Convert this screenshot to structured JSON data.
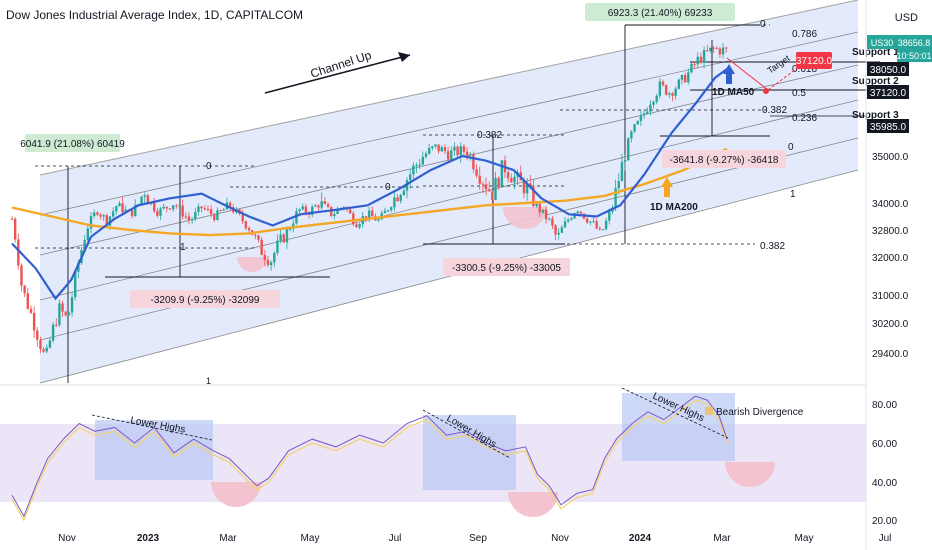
{
  "header": {
    "title": "Dow Jones Industrial Average Index, 1D, CAPITALCOM",
    "currency": "USD"
  },
  "colors": {
    "channel_fill": "#dde6fb",
    "ma50": "#2f5fd0",
    "ma200": "#f5a623",
    "price_up": "#26a69a",
    "price_down": "#ef5350",
    "rsi": "#7e57c2",
    "rsi_ma": "#f2d36b",
    "rsi_band": "#ece4f7",
    "box_blue": "#b9c8f3",
    "circle_pink": "#f3c3cf",
    "label_green": "#cdebd3",
    "label_pink": "#f6d5dd",
    "target_red": "#f23645",
    "dark": "#131722",
    "price_tag": "#26a69a"
  },
  "chart_data": {
    "type": "candlestick",
    "y_axis": {
      "ticks": [
        35000,
        34000,
        32800,
        32000,
        31000,
        30200,
        29400
      ],
      "tick_labels": [
        "35000.0",
        "34000.0",
        "32800.0",
        "32000.0",
        "31000.0",
        "30200.0",
        "29400.0"
      ],
      "ylim": [
        28900,
        39100
      ]
    },
    "x_axis": {
      "tick_labels": [
        "Nov",
        "2023",
        "Mar",
        "May",
        "Jul",
        "Sep",
        "Nov",
        "2024",
        "Mar",
        "May",
        "Jul"
      ]
    },
    "rsi_axis": {
      "tick_labels": [
        "80.00",
        "60.00",
        "40.00",
        "20.00"
      ],
      "ylim": [
        17,
        92
      ]
    },
    "price_path": [
      [
        0,
        33300
      ],
      [
        5,
        31200
      ],
      [
        10,
        30400
      ],
      [
        14,
        29700
      ],
      [
        17,
        29200
      ],
      [
        20,
        29900
      ],
      [
        24,
        30600
      ],
      [
        28,
        30300
      ],
      [
        33,
        31700
      ],
      [
        38,
        32900
      ],
      [
        43,
        33700
      ],
      [
        48,
        33200
      ],
      [
        53,
        33900
      ],
      [
        60,
        33500
      ],
      [
        67,
        34300
      ],
      [
        74,
        33600
      ],
      [
        82,
        34000
      ],
      [
        90,
        33200
      ],
      [
        96,
        33800
      ],
      [
        103,
        33400
      ],
      [
        110,
        33900
      ],
      [
        116,
        33300
      ],
      [
        121,
        32800
      ],
      [
        126,
        32200
      ],
      [
        131,
        31900
      ],
      [
        135,
        32400
      ],
      [
        140,
        32800
      ],
      [
        145,
        33700
      ],
      [
        150,
        33600
      ],
      [
        156,
        34000
      ],
      [
        162,
        33500
      ],
      [
        168,
        33900
      ],
      [
        174,
        33100
      ],
      [
        180,
        33500
      ],
      [
        186,
        33200
      ],
      [
        192,
        34000
      ],
      [
        198,
        34400
      ],
      [
        206,
        34900
      ],
      [
        214,
        35300
      ],
      [
        222,
        35100
      ],
      [
        230,
        35200
      ],
      [
        237,
        34600
      ],
      [
        243,
        34200
      ],
      [
        249,
        34800
      ],
      [
        255,
        34500
      ],
      [
        261,
        34300
      ],
      [
        267,
        33700
      ],
      [
        272,
        33200
      ],
      [
        276,
        32500
      ],
      [
        281,
        33200
      ],
      [
        286,
        33800
      ],
      [
        290,
        33400
      ],
      [
        295,
        33000
      ],
      [
        298,
        32600
      ],
      [
        302,
        33400
      ],
      [
        306,
        34300
      ],
      [
        310,
        35000
      ],
      [
        314,
        35800
      ],
      [
        318,
        36200
      ],
      [
        323,
        36900
      ],
      [
        328,
        37400
      ],
      [
        333,
        37200
      ],
      [
        338,
        37500
      ],
      [
        343,
        37900
      ],
      [
        347,
        38300
      ],
      [
        351,
        38500
      ],
      [
        355,
        38700
      ],
      [
        359,
        38650
      ],
      [
        362,
        38656
      ]
    ],
    "ma50_path": [
      [
        0,
        32400
      ],
      [
        12,
        31700
      ],
      [
        22,
        30900
      ],
      [
        30,
        31400
      ],
      [
        40,
        32600
      ],
      [
        52,
        33300
      ],
      [
        64,
        33900
      ],
      [
        80,
        34100
      ],
      [
        96,
        34200
      ],
      [
        108,
        33900
      ],
      [
        120,
        33400
      ],
      [
        132,
        33000
      ],
      [
        146,
        33500
      ],
      [
        164,
        33700
      ],
      [
        180,
        33900
      ],
      [
        196,
        34300
      ],
      [
        212,
        34700
      ],
      [
        228,
        35000
      ],
      [
        240,
        34900
      ],
      [
        254,
        34700
      ],
      [
        268,
        34100
      ],
      [
        282,
        33500
      ],
      [
        296,
        33400
      ],
      [
        308,
        33900
      ],
      [
        320,
        34600
      ],
      [
        334,
        35800
      ],
      [
        346,
        36800
      ],
      [
        356,
        37700
      ],
      [
        362,
        38000
      ]
    ],
    "ma200_path": [
      [
        0,
        33800
      ],
      [
        20,
        33400
      ],
      [
        40,
        33000
      ],
      [
        60,
        32800
      ],
      [
        80,
        32700
      ],
      [
        100,
        32650
      ],
      [
        120,
        32700
      ],
      [
        140,
        32900
      ],
      [
        160,
        33100
      ],
      [
        180,
        33300
      ],
      [
        200,
        33500
      ],
      [
        220,
        33700
      ],
      [
        240,
        33900
      ],
      [
        260,
        34000
      ],
      [
        280,
        34050
      ],
      [
        300,
        34150
      ],
      [
        320,
        34400
      ],
      [
        340,
        34700
      ],
      [
        362,
        35250
      ]
    ],
    "rsi_path": [
      [
        0,
        33
      ],
      [
        6,
        22
      ],
      [
        12,
        38
      ],
      [
        18,
        52
      ],
      [
        26,
        62
      ],
      [
        34,
        70
      ],
      [
        42,
        66
      ],
      [
        52,
        68
      ],
      [
        62,
        60
      ],
      [
        72,
        68
      ],
      [
        82,
        55
      ],
      [
        92,
        62
      ],
      [
        102,
        56
      ],
      [
        110,
        52
      ],
      [
        118,
        44
      ],
      [
        124,
        38
      ],
      [
        130,
        42
      ],
      [
        140,
        56
      ],
      [
        152,
        62
      ],
      [
        164,
        58
      ],
      [
        176,
        64
      ],
      [
        188,
        60
      ],
      [
        200,
        70
      ],
      [
        210,
        74
      ],
      [
        220,
        64
      ],
      [
        230,
        66
      ],
      [
        240,
        60
      ],
      [
        250,
        56
      ],
      [
        260,
        58
      ],
      [
        266,
        44
      ],
      [
        272,
        38
      ],
      [
        278,
        28
      ],
      [
        286,
        34
      ],
      [
        294,
        36
      ],
      [
        300,
        52
      ],
      [
        306,
        62
      ],
      [
        314,
        70
      ],
      [
        322,
        76
      ],
      [
        330,
        72
      ],
      [
        338,
        78
      ],
      [
        346,
        84
      ],
      [
        352,
        82
      ],
      [
        358,
        74
      ],
      [
        362,
        62
      ]
    ],
    "annotations": {
      "channel_label": "Channel Up",
      "fib_top": "6923.3 (21.40%) 69233",
      "fib_left": "6041.9 (21.08%) 60419",
      "fib_1": "-3209.9 (-9.25%) -32099",
      "fib_2": "-3300.5 (-9.25%) -33005",
      "fib_3": "-3641.8 (-9.27%) -36418",
      "ma50_label": "1D MA50",
      "ma200_label": "1D MA200",
      "target_label": "Target",
      "fib_levels": [
        "0",
        "0.786",
        "0.618",
        "0.5",
        "0.382",
        "0.236",
        "0",
        "1",
        "0.382",
        "0",
        "0.382",
        "1",
        "0"
      ],
      "lower_highs": [
        "Lower Highs",
        "Lower Highs",
        "Lower Highs"
      ],
      "bearish": "Bearish Divergence"
    },
    "supports": [
      {
        "label": "Support 1",
        "tag": "38050.0"
      },
      {
        "label": "Support 2",
        "tag": "37120.0"
      },
      {
        "label": "Support 3",
        "tag": "35985.0"
      }
    ],
    "target_tag": "37120.0",
    "current_price": {
      "symbol": "US30",
      "price": "38656.8",
      "time": "10:50:01"
    }
  }
}
